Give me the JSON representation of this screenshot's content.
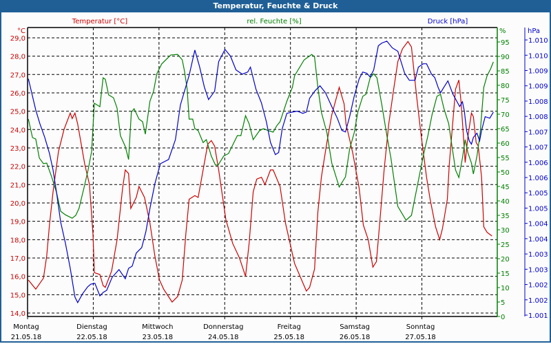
{
  "window_title": "Temperatur, Feuchte & Druck",
  "colors": {
    "temperature": "#cc0000",
    "humidity": "#008000",
    "pressure": "#0000cc",
    "titlebar": "#1f5f96"
  },
  "chart_data": {
    "type": "line",
    "title": "Temperatur, Feuchte & Druck",
    "x_unit": "hours since Montag 21.05.18 00:00",
    "xlim": [
      0,
      171.5
    ],
    "days": [
      {
        "name": "Montag",
        "date": "21.05.18"
      },
      {
        "name": "Dienstag",
        "date": "22.05.18"
      },
      {
        "name": "Mittwoch",
        "date": "23.05.18"
      },
      {
        "name": "Donnerstag",
        "date": "24.05.18"
      },
      {
        "name": "Freitag",
        "date": "25.05.18"
      },
      {
        "name": "Samstag",
        "date": "26.05.18"
      },
      {
        "name": "Sonntag",
        "date": "27.05.18"
      }
    ],
    "grid": true,
    "axes": {
      "temperature": {
        "label": "Temperatur [°C]",
        "unit": "°C",
        "ylim": [
          14,
          29.6
        ],
        "ticks": [
          "14,0",
          "15,0",
          "16,0",
          "17,0",
          "18,0",
          "19,0",
          "20,0",
          "21,0",
          "22,0",
          "23,0",
          "24,0",
          "25,0",
          "26,0",
          "27,0",
          "28,0",
          "29,0"
        ]
      },
      "humidity": {
        "label": "rel. Feuchte [%]",
        "unit": "%",
        "ylim": [
          0,
          100
        ],
        "ticks": [
          "0",
          "5",
          "10",
          "15",
          "20",
          "25",
          "30",
          "35",
          "40",
          "45",
          "50",
          "55",
          "60",
          "65",
          "70",
          "75",
          "80",
          "85",
          "90",
          "95"
        ]
      },
      "pressure": {
        "label": "Druck [hPa]",
        "unit": "hPa",
        "ylim": [
          1001.0,
          1010.0
        ],
        "ticks": [
          "1.001",
          "1.002",
          "1.002",
          "1.003",
          "1.003",
          "1.004",
          "1.004",
          "1.005",
          "1.005",
          "1.006",
          "1.006",
          "1.007",
          "1.007",
          "1.008",
          "1.008",
          "1.009",
          "1.009",
          "1.010",
          "1.010"
        ]
      }
    },
    "series": [
      {
        "name": "Temperatur [°C]",
        "axis": "temperature",
        "x": [
          0.3,
          3.0,
          5.8,
          7.0,
          8.0,
          9.3,
          11.3,
          13.3,
          15.6,
          16.3,
          17.3,
          18.3,
          20.9,
          22.6,
          23.9,
          24.4,
          26.4,
          27.6,
          28.4,
          30.7,
          32.7,
          34.7,
          35.7,
          36.9,
          37.7,
          39.7,
          40.7,
          42.7,
          44.7,
          46.5,
          48.2,
          49.7,
          52.8,
          54.8,
          56.5,
          57.8,
          59.0,
          61.1,
          62.3,
          64.1,
          65.8,
          67.1,
          68.3,
          69.8,
          72.4,
          74.9,
          77.4,
          79.6,
          80.9,
          82.4,
          83.7,
          85.4,
          86.7,
          88.7,
          89.7,
          92.2,
          94.2,
          97.5,
          101.8,
          103.0,
          104.8,
          106.0,
          107.3,
          109.3,
          111.1,
          113.8,
          115.6,
          116.3,
          118.8,
          121.1,
          122.6,
          124.4,
          126.1,
          127.4,
          128.6,
          130.2,
          131.9,
          133.7,
          135.2,
          136.9,
          138.9,
          140.2,
          142.0,
          143.7,
          145.7,
          147.0,
          149.0,
          150.5,
          151.5,
          153.3,
          154.0,
          155.0,
          156.3,
          157.5,
          158.3,
          159.0,
          159.8,
          160.8,
          162.1,
          162.8,
          163.8,
          164.6,
          165.8,
          166.6,
          167.8,
          169.6
        ],
        "values": [
          15.8,
          15.3,
          15.9,
          17.1,
          18.8,
          20.6,
          22.8,
          24.0,
          24.9,
          24.6,
          24.9,
          24.3,
          22.1,
          21.0,
          18.3,
          16.2,
          16.1,
          15.5,
          15.4,
          16.3,
          18.0,
          20.8,
          21.8,
          21.6,
          19.7,
          20.3,
          20.9,
          20.3,
          18.9,
          17.1,
          15.8,
          15.3,
          14.6,
          14.9,
          15.8,
          18.3,
          20.2,
          20.4,
          20.3,
          21.8,
          23.2,
          23.4,
          23.1,
          21.8,
          19.1,
          17.8,
          17.0,
          16.0,
          17.8,
          20.6,
          21.3,
          21.4,
          21.0,
          21.8,
          21.8,
          20.9,
          18.9,
          16.7,
          15.2,
          15.4,
          16.4,
          19.5,
          21.4,
          23.3,
          24.8,
          26.3,
          25.4,
          24.3,
          22.7,
          20.8,
          18.8,
          18.0,
          16.5,
          16.8,
          18.9,
          21.8,
          24.3,
          26.2,
          27.7,
          28.4,
          28.8,
          28.5,
          25.9,
          23.7,
          21.4,
          20.2,
          18.7,
          18.0,
          18.6,
          20.2,
          22.1,
          23.9,
          26.2,
          26.7,
          25.5,
          24.0,
          22.2,
          23.6,
          24.9,
          24.7,
          23.3,
          23.1,
          21.4,
          18.7,
          18.4,
          18.2
        ]
      },
      {
        "name": "rel. Feuchte [%]",
        "axis": "humidity",
        "x": [
          0.3,
          1.8,
          3.0,
          4.3,
          5.8,
          7.0,
          8.8,
          10.6,
          12.1,
          13.8,
          16.3,
          17.6,
          18.8,
          20.6,
          22.1,
          23.4,
          24.4,
          26.4,
          27.6,
          28.4,
          29.6,
          31.4,
          32.7,
          33.9,
          35.7,
          36.9,
          37.9,
          38.9,
          40.7,
          42.0,
          43.0,
          44.7,
          46.0,
          47.2,
          49.0,
          52.3,
          54.8,
          56.5,
          57.3,
          58.3,
          59.0,
          60.3,
          61.1,
          62.3,
          64.1,
          65.3,
          67.1,
          68.6,
          69.6,
          71.6,
          73.4,
          76.6,
          77.9,
          79.6,
          80.9,
          82.4,
          84.7,
          86.2,
          87.9,
          89.7,
          91.0,
          92.2,
          94.7,
          96.7,
          97.5,
          101.0,
          103.8,
          104.8,
          106.0,
          107.3,
          109.3,
          111.1,
          113.8,
          116.1,
          117.6,
          119.3,
          120.6,
          122.4,
          123.6,
          125.1,
          126.4,
          127.6,
          129.4,
          131.2,
          132.7,
          135.2,
          138.2,
          140.2,
          142.5,
          144.5,
          146.2,
          147.7,
          149.5,
          150.8,
          152.0,
          153.8,
          155.0,
          156.3,
          157.5,
          158.8,
          159.8,
          160.8,
          162.1,
          162.8,
          164.1,
          165.3,
          166.6,
          167.8,
          169.1,
          170.1
        ],
        "values": [
          68.3,
          61.9,
          61.4,
          54.8,
          52.9,
          53.1,
          48.3,
          42.9,
          36.4,
          35.2,
          34.0,
          35.0,
          37.4,
          44.5,
          50.7,
          57.1,
          73.8,
          72.6,
          82.6,
          82.1,
          76.7,
          75.7,
          72.1,
          62.6,
          58.8,
          54.3,
          70.7,
          71.9,
          68.3,
          67.4,
          63.1,
          74.5,
          77.9,
          84.0,
          87.4,
          90.5,
          90.7,
          88.8,
          85.0,
          78.6,
          68.3,
          68.3,
          65.0,
          64.3,
          60.2,
          61.2,
          55.5,
          52.4,
          52.4,
          55.5,
          56.4,
          62.6,
          62.6,
          69.5,
          66.7,
          61.2,
          64.3,
          65.0,
          64.3,
          63.8,
          66.0,
          67.4,
          74.5,
          79.3,
          83.3,
          88.8,
          90.7,
          89.8,
          79.3,
          70.7,
          63.6,
          53.1,
          44.8,
          48.3,
          57.9,
          63.6,
          70.7,
          76.2,
          76.9,
          82.6,
          84.0,
          82.6,
          73.1,
          62.6,
          54.8,
          38.1,
          33.3,
          35.0,
          46.0,
          55.5,
          62.6,
          69.8,
          76.2,
          76.9,
          72.1,
          66.7,
          58.8,
          50.7,
          48.1,
          54.8,
          61.2,
          56.7,
          53.1,
          49.3,
          55.5,
          63.6,
          79.3,
          83.3,
          85.7,
          88.1
        ]
      },
      {
        "name": "Druck [hPa]",
        "axis": "pressure",
        "x": [
          0.3,
          3.0,
          4.5,
          6.3,
          8.0,
          9.3,
          10.6,
          12.1,
          13.8,
          15.6,
          17.3,
          18.3,
          20.1,
          21.9,
          23.1,
          24.6,
          26.4,
          27.6,
          28.9,
          30.9,
          33.4,
          35.7,
          36.9,
          38.2,
          39.7,
          41.7,
          43.2,
          44.7,
          46.5,
          48.5,
          51.5,
          54.0,
          55.8,
          57.3,
          59.0,
          61.1,
          62.8,
          64.6,
          66.1,
          68.3,
          69.8,
          72.1,
          74.1,
          76.1,
          78.4,
          80.4,
          81.4,
          83.4,
          85.4,
          87.2,
          88.7,
          90.5,
          91.7,
          93.0,
          94.7,
          96.7,
          98.5,
          100.5,
          101.8,
          103.0,
          105.0,
          106.8,
          108.8,
          111.1,
          113.1,
          114.8,
          116.1,
          117.6,
          119.3,
          121.1,
          122.4,
          123.9,
          125.1,
          126.4,
          128.1,
          129.4,
          131.2,
          133.2,
          135.2,
          137.7,
          139.4,
          141.5,
          142.7,
          144.5,
          145.7,
          147.5,
          148.7,
          150.0,
          150.8,
          152.0,
          153.5,
          155.3,
          157.8,
          158.8,
          159.5,
          160.3,
          161.3,
          162.1,
          162.8,
          164.1,
          165.1,
          165.8,
          167.1,
          168.8,
          170.1
        ],
        "values": [
          1008.73,
          1007.71,
          1007.26,
          1006.81,
          1006.29,
          1005.75,
          1005.01,
          1004.04,
          1003.36,
          1002.53,
          1001.59,
          1001.41,
          1001.7,
          1001.92,
          1002.01,
          1002.04,
          1001.63,
          1001.74,
          1001.81,
          1002.24,
          1002.49,
          1002.19,
          1002.53,
          1002.6,
          1003.03,
          1003.21,
          1003.73,
          1004.49,
          1005.3,
          1005.95,
          1006.09,
          1006.74,
          1007.87,
          1008.32,
          1008.84,
          1009.67,
          1009.13,
          1008.45,
          1008.05,
          1008.32,
          1009.29,
          1009.69,
          1009.47,
          1009.02,
          1008.88,
          1008.95,
          1009.11,
          1008.39,
          1007.94,
          1007.33,
          1006.65,
          1006.25,
          1006.32,
          1007.1,
          1007.6,
          1007.64,
          1007.67,
          1007.6,
          1007.64,
          1008.09,
          1008.34,
          1008.5,
          1008.27,
          1007.82,
          1007.44,
          1007.04,
          1006.99,
          1007.49,
          1008.16,
          1008.73,
          1008.95,
          1008.91,
          1008.79,
          1009.02,
          1009.81,
          1009.9,
          1009.96,
          1009.74,
          1009.63,
          1008.91,
          1008.68,
          1008.68,
          1009.11,
          1009.22,
          1009.22,
          1008.88,
          1008.77,
          1008.43,
          1008.27,
          1008.45,
          1008.66,
          1008.23,
          1007.82,
          1007.98,
          1007.67,
          1007.04,
          1006.7,
          1006.59,
          1006.81,
          1006.95,
          1006.7,
          1007.04,
          1007.49,
          1007.44,
          1007.64
        ]
      }
    ]
  }
}
